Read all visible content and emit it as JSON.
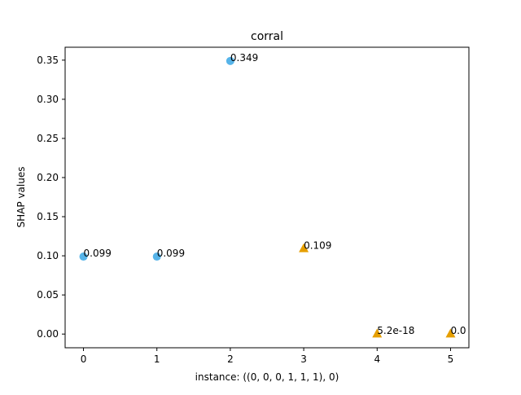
{
  "chart_data": {
    "type": "scatter",
    "title": "corral",
    "xlabel": "instance: ((0, 0, 0, 1, 1, 1), 0)",
    "ylabel": "SHAP values",
    "xlim": [
      -0.25,
      5.25
    ],
    "ylim": [
      -0.0175,
      0.3665
    ],
    "x_ticks": [
      0,
      1,
      2,
      3,
      4,
      5
    ],
    "x_tick_labels": [
      "0",
      "1",
      "2",
      "3",
      "4",
      "5"
    ],
    "y_ticks": [
      0.0,
      0.05,
      0.1,
      0.15,
      0.2,
      0.25,
      0.3,
      0.35
    ],
    "y_tick_labels": [
      "0.00",
      "0.05",
      "0.10",
      "0.15",
      "0.20",
      "0.25",
      "0.30",
      "0.35"
    ],
    "grid": false,
    "legend": "none",
    "series": [
      {
        "marker": "circle",
        "color": "#56B4E9",
        "points": [
          {
            "x": 0,
            "y": 0.099,
            "label": "0.099"
          },
          {
            "x": 1,
            "y": 0.099,
            "label": "0.099"
          },
          {
            "x": 2,
            "y": 0.349,
            "label": "0.349"
          }
        ]
      },
      {
        "marker": "triangle",
        "color": "#E69F00",
        "points": [
          {
            "x": 3,
            "y": 0.109,
            "label": "0.109"
          },
          {
            "x": 4,
            "y": 0.0,
            "label": "5.2e-18"
          },
          {
            "x": 5,
            "y": 0.0,
            "label": "0.0"
          }
        ]
      }
    ]
  }
}
